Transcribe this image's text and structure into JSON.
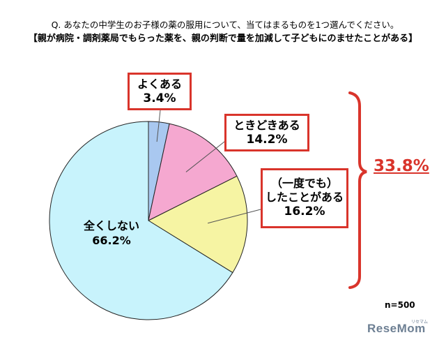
{
  "question": "Q. あなたの中学生のお子様の薬の服用について、当てはまるものを1つ選んでください。",
  "subtitle": "【親が病院・調剤薬局でもらった薬を、親の判断で量を加減して子どもにのませたことがある】",
  "total_label": "33.8%",
  "n_label": "n=500",
  "brand": "ReseMom",
  "brand_mark": "リセマム",
  "colors": {
    "often": "#a9c8f0",
    "sometimes": "#f5a8d0",
    "once": "#f6f4a3",
    "never": "#c8f3fc",
    "accent": "#d9342b",
    "edge": "#222222"
  },
  "chart_data": {
    "type": "pie",
    "n": 500,
    "slices": [
      {
        "key": "often",
        "label": "よくある",
        "value": 3.4,
        "value_label": "3.4%"
      },
      {
        "key": "sometimes",
        "label": "ときどきある",
        "value": 14.2,
        "value_label": "14.2%"
      },
      {
        "key": "once",
        "label_lines": [
          "（一度でも）",
          "したことがある"
        ],
        "value": 16.2,
        "value_label": "16.2%"
      },
      {
        "key": "never",
        "label": "全くしない",
        "value": 66.2,
        "value_label": "66.2%"
      }
    ],
    "bracket_total": 33.8
  }
}
